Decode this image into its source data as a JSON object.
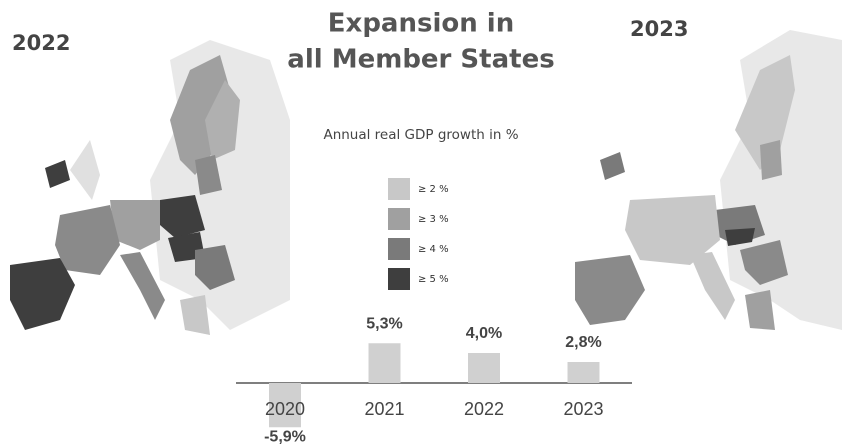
{
  "header": {
    "title_lines": [
      "Expansion in",
      "all Member States"
    ]
  },
  "maps": [
    {
      "label": "2022"
    },
    {
      "label": "2023"
    }
  ],
  "legend": {
    "title": "Annual real GDP growth in %",
    "items": [
      {
        "label": "≥ 2 %",
        "color": "#c8c8c8"
      },
      {
        "label": "≥ 3 %",
        "color": "#a0a0a0"
      },
      {
        "label": "≥ 4 %",
        "color": "#7a7a7a"
      },
      {
        "label": "≥ 5 %",
        "color": "#3e3e3e"
      }
    ]
  },
  "chart_data": {
    "type": "bar",
    "categories": [
      "2020",
      "2021",
      "2022",
      "2023"
    ],
    "values": [
      -5.9,
      5.3,
      4.0,
      2.8
    ],
    "value_labels": [
      "-5,9%",
      "5,3%",
      "4,0%",
      "2,8%"
    ],
    "color": "#d0d0d0"
  }
}
